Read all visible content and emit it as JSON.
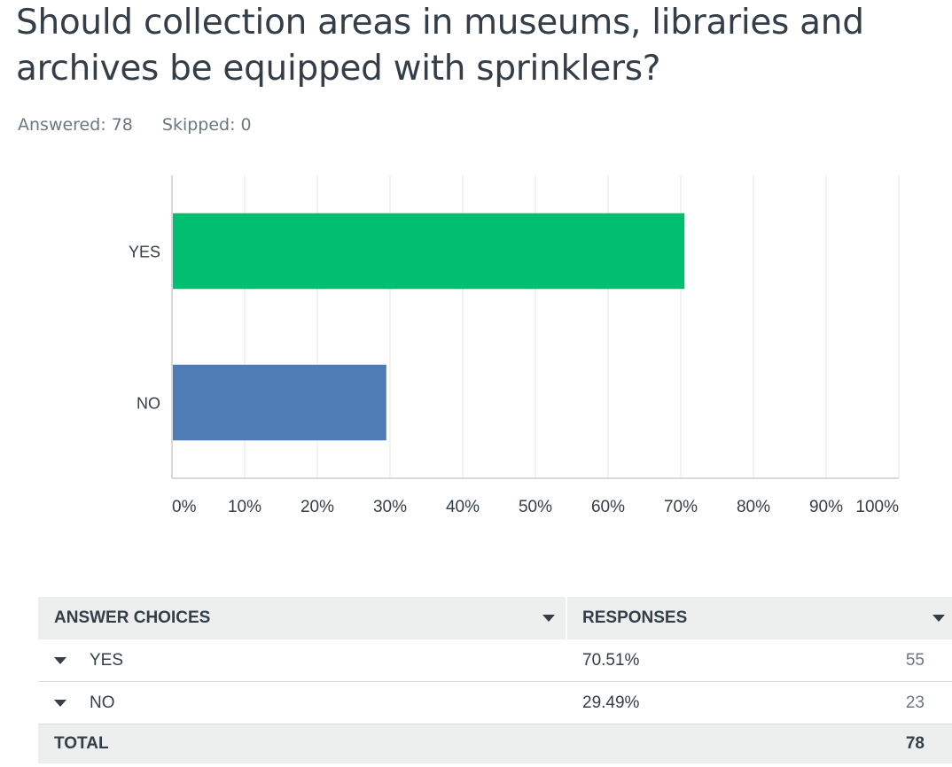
{
  "question": {
    "title": "Should collection areas in museums, libraries and archives be equipped with sprinklers?"
  },
  "summary": {
    "answered_label": "Answered:",
    "answered_value": "78",
    "skipped_label": "Skipped:",
    "skipped_value": "0"
  },
  "chart_data": {
    "type": "bar",
    "orientation": "horizontal",
    "categories": [
      "YES",
      "NO"
    ],
    "values": [
      70.51,
      29.49
    ],
    "bar_colors": [
      "#00bf6f",
      "#507cb6"
    ],
    "x_ticks": [
      "0%",
      "10%",
      "20%",
      "30%",
      "40%",
      "50%",
      "60%",
      "70%",
      "80%",
      "90%",
      "100%"
    ],
    "xlim": [
      0,
      100
    ],
    "grid": true,
    "title": "",
    "xlabel": "",
    "ylabel": ""
  },
  "table": {
    "header_choices": "ANSWER CHOICES",
    "header_responses": "RESPONSES",
    "rows": [
      {
        "choice": "YES",
        "percent": "70.51%",
        "count": "55"
      },
      {
        "choice": "NO",
        "percent": "29.49%",
        "count": "23"
      }
    ],
    "total_label": "TOTAL",
    "total_count": "78"
  }
}
